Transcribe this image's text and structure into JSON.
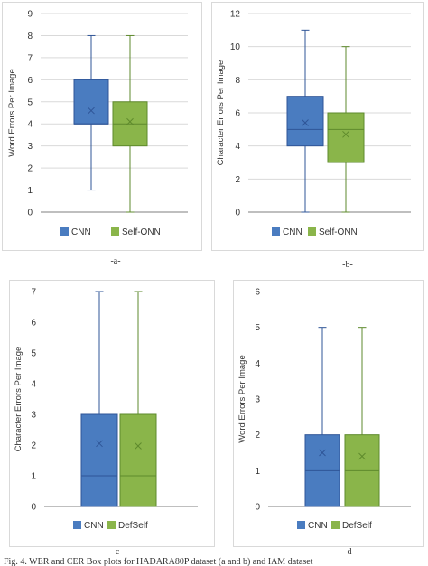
{
  "colors": {
    "series1": "#4a7cc0",
    "series1_edge": "#2f5597",
    "series2": "#8ab54a",
    "series2_edge": "#5e8a2c",
    "axis": "#7f7f7f",
    "grid": "#d9d9d9"
  },
  "chart_data": [
    {
      "type": "box",
      "sublabel": "-a-",
      "ylabel": "Word Errors Per Image",
      "ylim": [
        0,
        9
      ],
      "yticks": [
        "0",
        "1",
        "2",
        "3",
        "4",
        "5",
        "6",
        "7",
        "8",
        "9"
      ],
      "grid": true,
      "legend_placement": "bottom",
      "series": [
        {
          "name": "CNN",
          "min": 1,
          "q1": 4,
          "median": 4,
          "q3": 6,
          "max": 8,
          "mean": 4.6
        },
        {
          "name": "Self-ONN",
          "min": 0,
          "q1": 3,
          "median": 4,
          "q3": 5,
          "max": 8,
          "mean": 4.1
        }
      ]
    },
    {
      "type": "box",
      "sublabel": "-b-",
      "ylabel": "Character Errors Per Image",
      "ylim": [
        0,
        12
      ],
      "yticks": [
        "0",
        "2",
        "4",
        "6",
        "8",
        "10",
        "12"
      ],
      "grid": true,
      "legend_placement": "bottom",
      "series": [
        {
          "name": "CNN",
          "min": 0,
          "q1": 4,
          "median": 5,
          "q3": 7,
          "max": 11,
          "mean": 5.4
        },
        {
          "name": "Self-ONN",
          "min": 0,
          "q1": 3,
          "median": 5,
          "q3": 6,
          "max": 10,
          "mean": 4.7
        }
      ]
    },
    {
      "type": "box",
      "sublabel": "-c-",
      "ylabel": "Character Errors Per Image",
      "ylim": [
        0,
        7
      ],
      "yticks": [
        "0",
        "1",
        "2",
        "3",
        "4",
        "5",
        "6",
        "7"
      ],
      "grid": false,
      "legend_placement": "bottom",
      "series": [
        {
          "name": "CNN",
          "min": 0,
          "q1": 0,
          "median": 1,
          "q3": 3,
          "max": 7,
          "mean": 2.05
        },
        {
          "name": "DefSelf",
          "min": 0,
          "q1": 0,
          "median": 1,
          "q3": 3,
          "max": 7,
          "mean": 1.97
        }
      ]
    },
    {
      "type": "box",
      "sublabel": "-d-",
      "ylabel": "Word Errors Per Image",
      "ylim": [
        0,
        6
      ],
      "yticks": [
        "0",
        "1",
        "2",
        "3",
        "4",
        "5",
        "6"
      ],
      "grid": false,
      "legend_placement": "bottom",
      "series": [
        {
          "name": "CNN",
          "min": 0,
          "q1": 0,
          "median": 1,
          "q3": 2,
          "max": 5,
          "mean": 1.5
        },
        {
          "name": "DefSelf",
          "min": 0,
          "q1": 0,
          "median": 1,
          "q3": 2,
          "max": 5,
          "mean": 1.4
        }
      ]
    }
  ],
  "caption": "Fig. 4. WER and CER Box plots for HADARA80P dataset (a and b) and IAM dataset"
}
